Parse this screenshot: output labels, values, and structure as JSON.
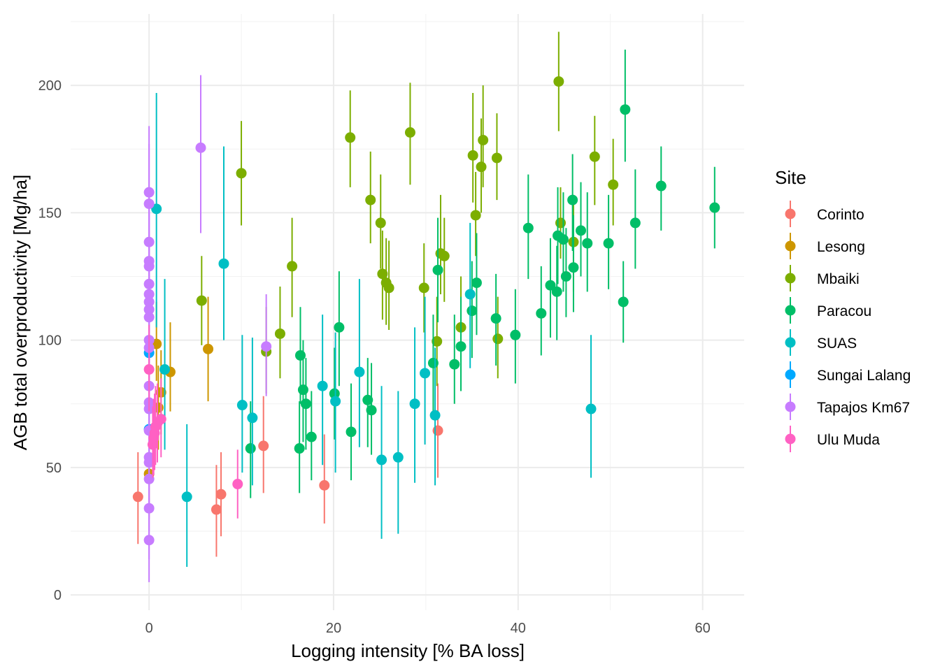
{
  "chart_data": {
    "type": "scatter",
    "title": "",
    "xlabel": "Logging intensity [% BA loss]",
    "ylabel": "AGB total overproductivity [Mg/ha]",
    "xlim": [
      -8.5,
      64.5
    ],
    "ylim": [
      -6,
      228
    ],
    "x_ticks": [
      0,
      20,
      40,
      60
    ],
    "x_tick_labels": [
      "0",
      "20",
      "40",
      "60"
    ],
    "y_ticks": [
      0,
      50,
      100,
      150,
      200
    ],
    "y_tick_labels": [
      "0",
      "50",
      "100",
      "150",
      "200"
    ],
    "grid": true,
    "error_bars": true,
    "legend": {
      "title": "Site",
      "position": "right"
    },
    "series": [
      {
        "name": "Corinto",
        "color": "#F8766D",
        "points": [
          {
            "x": -1.2,
            "y": 38.5,
            "lo": 20,
            "hi": 56
          },
          {
            "x": 7.3,
            "y": 33.5,
            "lo": 15,
            "hi": 51
          },
          {
            "x": 7.8,
            "y": 39.5,
            "lo": 23,
            "hi": 56
          },
          {
            "x": 12.4,
            "y": 58.5,
            "lo": 40,
            "hi": 78
          },
          {
            "x": 19.0,
            "y": 43.0,
            "lo": 28,
            "hi": 63
          },
          {
            "x": 31.3,
            "y": 64.5,
            "lo": 46,
            "hi": 83
          }
        ]
      },
      {
        "name": "Lesong",
        "color": "#CD9600",
        "points": [
          {
            "x": 0.0,
            "y": 47.5,
            "lo": 30,
            "hi": 64
          },
          {
            "x": 0.8,
            "y": 98.5,
            "lo": 84,
            "hi": 115
          },
          {
            "x": 1.0,
            "y": 73.5,
            "lo": 57,
            "hi": 90
          },
          {
            "x": 1.3,
            "y": 79.5,
            "lo": 63,
            "hi": 96
          },
          {
            "x": 2.3,
            "y": 87.5,
            "lo": 72,
            "hi": 107
          },
          {
            "x": 6.4,
            "y": 96.5,
            "lo": 76,
            "hi": 117
          }
        ]
      },
      {
        "name": "Mbaiki",
        "color": "#7CAE00",
        "points": [
          {
            "x": 5.7,
            "y": 115.5,
            "lo": 98,
            "hi": 133
          },
          {
            "x": 10.0,
            "y": 165.5,
            "lo": 145,
            "hi": 186
          },
          {
            "x": 12.7,
            "y": 95.5,
            "lo": 79,
            "hi": 113
          },
          {
            "x": 14.2,
            "y": 102.5,
            "lo": 85,
            "hi": 121
          },
          {
            "x": 15.5,
            "y": 129.0,
            "lo": 109,
            "hi": 148
          },
          {
            "x": 21.8,
            "y": 179.5,
            "lo": 160,
            "hi": 198
          },
          {
            "x": 24.0,
            "y": 155.0,
            "lo": 138,
            "hi": 174
          },
          {
            "x": 25.1,
            "y": 146.0,
            "lo": 128,
            "hi": 165
          },
          {
            "x": 25.3,
            "y": 126.0,
            "lo": 108,
            "hi": 143
          },
          {
            "x": 25.7,
            "y": 122.5,
            "lo": 106,
            "hi": 140
          },
          {
            "x": 26.0,
            "y": 120.5,
            "lo": 104,
            "hi": 139
          },
          {
            "x": 28.3,
            "y": 181.5,
            "lo": 161,
            "hi": 201
          },
          {
            "x": 29.8,
            "y": 120.5,
            "lo": 103,
            "hi": 138
          },
          {
            "x": 31.2,
            "y": 99.5,
            "lo": 82,
            "hi": 117
          },
          {
            "x": 31.6,
            "y": 134.0,
            "lo": 118,
            "hi": 157
          },
          {
            "x": 32.0,
            "y": 133.0,
            "lo": 115,
            "hi": 148
          },
          {
            "x": 33.8,
            "y": 105.0,
            "lo": 88,
            "hi": 125
          },
          {
            "x": 35.1,
            "y": 172.5,
            "lo": 154,
            "hi": 197
          },
          {
            "x": 35.4,
            "y": 149.0,
            "lo": 133,
            "hi": 166
          },
          {
            "x": 36.0,
            "y": 168.0,
            "lo": 150,
            "hi": 187
          },
          {
            "x": 36.2,
            "y": 178.5,
            "lo": 160,
            "hi": 200
          },
          {
            "x": 37.7,
            "y": 171.5,
            "lo": 155,
            "hi": 189
          },
          {
            "x": 37.8,
            "y": 100.5,
            "lo": 85,
            "hi": 117
          },
          {
            "x": 44.4,
            "y": 201.5,
            "lo": 182,
            "hi": 221
          },
          {
            "x": 44.6,
            "y": 146.0,
            "lo": 132,
            "hi": 160
          },
          {
            "x": 46.0,
            "y": 138.5,
            "lo": 119,
            "hi": 157
          },
          {
            "x": 48.3,
            "y": 172.0,
            "lo": 153,
            "hi": 188
          },
          {
            "x": 50.3,
            "y": 161.0,
            "lo": 145,
            "hi": 179
          }
        ]
      },
      {
        "name": "Paracou",
        "color": "#00BE67",
        "points": [
          {
            "x": 11.0,
            "y": 57.5,
            "lo": 38,
            "hi": 76
          },
          {
            "x": 16.3,
            "y": 57.5,
            "lo": 40,
            "hi": 76
          },
          {
            "x": 16.4,
            "y": 94.0,
            "lo": 75,
            "hi": 113
          },
          {
            "x": 16.7,
            "y": 80.5,
            "lo": 60,
            "hi": 100
          },
          {
            "x": 17.0,
            "y": 75.0,
            "lo": 57,
            "hi": 93
          },
          {
            "x": 17.6,
            "y": 62.0,
            "lo": 45,
            "hi": 80
          },
          {
            "x": 20.1,
            "y": 79.0,
            "lo": 61,
            "hi": 97
          },
          {
            "x": 20.6,
            "y": 105.0,
            "lo": 82,
            "hi": 127
          },
          {
            "x": 21.9,
            "y": 64.0,
            "lo": 45,
            "hi": 83
          },
          {
            "x": 23.7,
            "y": 76.5,
            "lo": 58,
            "hi": 93
          },
          {
            "x": 24.1,
            "y": 72.5,
            "lo": 55,
            "hi": 91
          },
          {
            "x": 30.8,
            "y": 91.0,
            "lo": 72,
            "hi": 110
          },
          {
            "x": 31.3,
            "y": 127.5,
            "lo": 107,
            "hi": 148
          },
          {
            "x": 33.1,
            "y": 90.5,
            "lo": 75,
            "hi": 110
          },
          {
            "x": 33.8,
            "y": 97.5,
            "lo": 80,
            "hi": 117
          },
          {
            "x": 35.0,
            "y": 111.5,
            "lo": 93,
            "hi": 131
          },
          {
            "x": 35.5,
            "y": 122.5,
            "lo": 102,
            "hi": 142
          },
          {
            "x": 37.6,
            "y": 108.5,
            "lo": 90,
            "hi": 126
          },
          {
            "x": 39.7,
            "y": 102.0,
            "lo": 83,
            "hi": 120
          },
          {
            "x": 41.1,
            "y": 144.0,
            "lo": 124,
            "hi": 165
          },
          {
            "x": 42.5,
            "y": 110.5,
            "lo": 94,
            "hi": 129
          },
          {
            "x": 43.5,
            "y": 121.5,
            "lo": 101,
            "hi": 140
          },
          {
            "x": 44.2,
            "y": 119.0,
            "lo": 100,
            "hi": 137
          },
          {
            "x": 44.3,
            "y": 141.0,
            "lo": 122,
            "hi": 160
          },
          {
            "x": 44.9,
            "y": 139.5,
            "lo": 119,
            "hi": 158
          },
          {
            "x": 45.2,
            "y": 125.0,
            "lo": 109,
            "hi": 144
          },
          {
            "x": 45.9,
            "y": 155.0,
            "lo": 135,
            "hi": 173
          },
          {
            "x": 46.0,
            "y": 128.5,
            "lo": 111,
            "hi": 149
          },
          {
            "x": 46.8,
            "y": 143.0,
            "lo": 125,
            "hi": 162
          },
          {
            "x": 47.5,
            "y": 138.0,
            "lo": 119,
            "hi": 158
          },
          {
            "x": 49.8,
            "y": 138.0,
            "lo": 120,
            "hi": 157
          },
          {
            "x": 51.4,
            "y": 115.0,
            "lo": 99,
            "hi": 131
          },
          {
            "x": 51.6,
            "y": 190.5,
            "lo": 170,
            "hi": 214
          },
          {
            "x": 52.7,
            "y": 146.0,
            "lo": 128,
            "hi": 167
          },
          {
            "x": 55.5,
            "y": 160.5,
            "lo": 143,
            "hi": 176
          },
          {
            "x": 61.3,
            "y": 152.0,
            "lo": 136,
            "hi": 168
          }
        ]
      },
      {
        "name": "SUAS",
        "color": "#00BFC4",
        "points": [
          {
            "x": 0.8,
            "y": 151.5,
            "lo": 105,
            "hi": 197
          },
          {
            "x": 1.7,
            "y": 88.5,
            "lo": 57,
            "hi": 124
          },
          {
            "x": 4.1,
            "y": 38.5,
            "lo": 11,
            "hi": 67
          },
          {
            "x": 8.1,
            "y": 130.0,
            "lo": 100,
            "hi": 176
          },
          {
            "x": 10.1,
            "y": 74.5,
            "lo": 48,
            "hi": 102
          },
          {
            "x": 11.2,
            "y": 69.5,
            "lo": 43,
            "hi": 101
          },
          {
            "x": 18.8,
            "y": 82.0,
            "lo": 51,
            "hi": 110
          },
          {
            "x": 20.2,
            "y": 76.0,
            "lo": 48,
            "hi": 103
          },
          {
            "x": 22.8,
            "y": 87.5,
            "lo": 58,
            "hi": 124
          },
          {
            "x": 25.2,
            "y": 53.0,
            "lo": 22,
            "hi": 82
          },
          {
            "x": 27.0,
            "y": 54.0,
            "lo": 24,
            "hi": 80
          },
          {
            "x": 28.8,
            "y": 75.0,
            "lo": 44,
            "hi": 105
          },
          {
            "x": 29.9,
            "y": 87.0,
            "lo": 59,
            "hi": 117
          },
          {
            "x": 31.0,
            "y": 70.5,
            "lo": 43,
            "hi": 97
          },
          {
            "x": 34.8,
            "y": 118.0,
            "lo": 89,
            "hi": 146
          },
          {
            "x": 47.9,
            "y": 73.0,
            "lo": 46,
            "hi": 102
          }
        ]
      },
      {
        "name": "Sungai Lalang",
        "color": "#00A9FF",
        "points": [
          {
            "x": 0.0,
            "y": 95.0,
            "lo": 80,
            "hi": 110
          },
          {
            "x": 0.0,
            "y": 65.0,
            "lo": 52,
            "hi": 80
          }
        ]
      },
      {
        "name": "Tapajos Km67",
        "color": "#C77CFF",
        "points": [
          {
            "x": 0.0,
            "y": 153.5,
            "lo": 130,
            "hi": 177
          },
          {
            "x": 0.0,
            "y": 138.5,
            "lo": 118,
            "hi": 160
          },
          {
            "x": 0.0,
            "y": 131.0,
            "lo": 110,
            "hi": 153
          },
          {
            "x": 0.0,
            "y": 129.0,
            "lo": 108,
            "hi": 150
          },
          {
            "x": 0.0,
            "y": 122.0,
            "lo": 102,
            "hi": 143
          },
          {
            "x": 0.0,
            "y": 118.0,
            "lo": 98,
            "hi": 139
          },
          {
            "x": 0.0,
            "y": 115.0,
            "lo": 95,
            "hi": 136
          },
          {
            "x": 0.0,
            "y": 112.0,
            "lo": 92,
            "hi": 133
          },
          {
            "x": 0.0,
            "y": 109.0,
            "lo": 89,
            "hi": 130
          },
          {
            "x": 0.0,
            "y": 100.0,
            "lo": 80,
            "hi": 120
          },
          {
            "x": 0.0,
            "y": 97.0,
            "lo": 77,
            "hi": 117
          },
          {
            "x": 0.0,
            "y": 82.0,
            "lo": 62,
            "hi": 102
          },
          {
            "x": 0.0,
            "y": 75.5,
            "lo": 56,
            "hi": 96
          },
          {
            "x": 0.0,
            "y": 73.0,
            "lo": 53,
            "hi": 93
          },
          {
            "x": 0.0,
            "y": 64.5,
            "lo": 45,
            "hi": 84
          },
          {
            "x": 0.0,
            "y": 54.0,
            "lo": 34,
            "hi": 74
          },
          {
            "x": 0.0,
            "y": 52.0,
            "lo": 32,
            "hi": 72
          },
          {
            "x": 0.0,
            "y": 45.5,
            "lo": 25,
            "hi": 66
          },
          {
            "x": 0.0,
            "y": 34.0,
            "lo": 14,
            "hi": 54
          },
          {
            "x": 0.0,
            "y": 21.5,
            "lo": 5,
            "hi": 38
          },
          {
            "x": 0.0,
            "y": 158.0,
            "lo": 132,
            "hi": 184
          },
          {
            "x": 5.6,
            "y": 175.5,
            "lo": 142,
            "hi": 204
          },
          {
            "x": 12.7,
            "y": 97.5,
            "lo": 78,
            "hi": 118
          }
        ]
      },
      {
        "name": "Ulu Muda",
        "color": "#FF61C3",
        "points": [
          {
            "x": 0.0,
            "y": 88.5,
            "lo": 72,
            "hi": 106
          },
          {
            "x": 0.4,
            "y": 59.0,
            "lo": 46,
            "hi": 74
          },
          {
            "x": 0.5,
            "y": 61.5,
            "lo": 47,
            "hi": 77
          },
          {
            "x": 0.6,
            "y": 63.5,
            "lo": 49,
            "hi": 79
          },
          {
            "x": 0.7,
            "y": 66.0,
            "lo": 51,
            "hi": 82
          },
          {
            "x": 0.9,
            "y": 67.5,
            "lo": 52,
            "hi": 83
          },
          {
            "x": 1.3,
            "y": 69.0,
            "lo": 54,
            "hi": 85
          },
          {
            "x": 9.6,
            "y": 43.5,
            "lo": 30,
            "hi": 57
          }
        ]
      }
    ]
  }
}
